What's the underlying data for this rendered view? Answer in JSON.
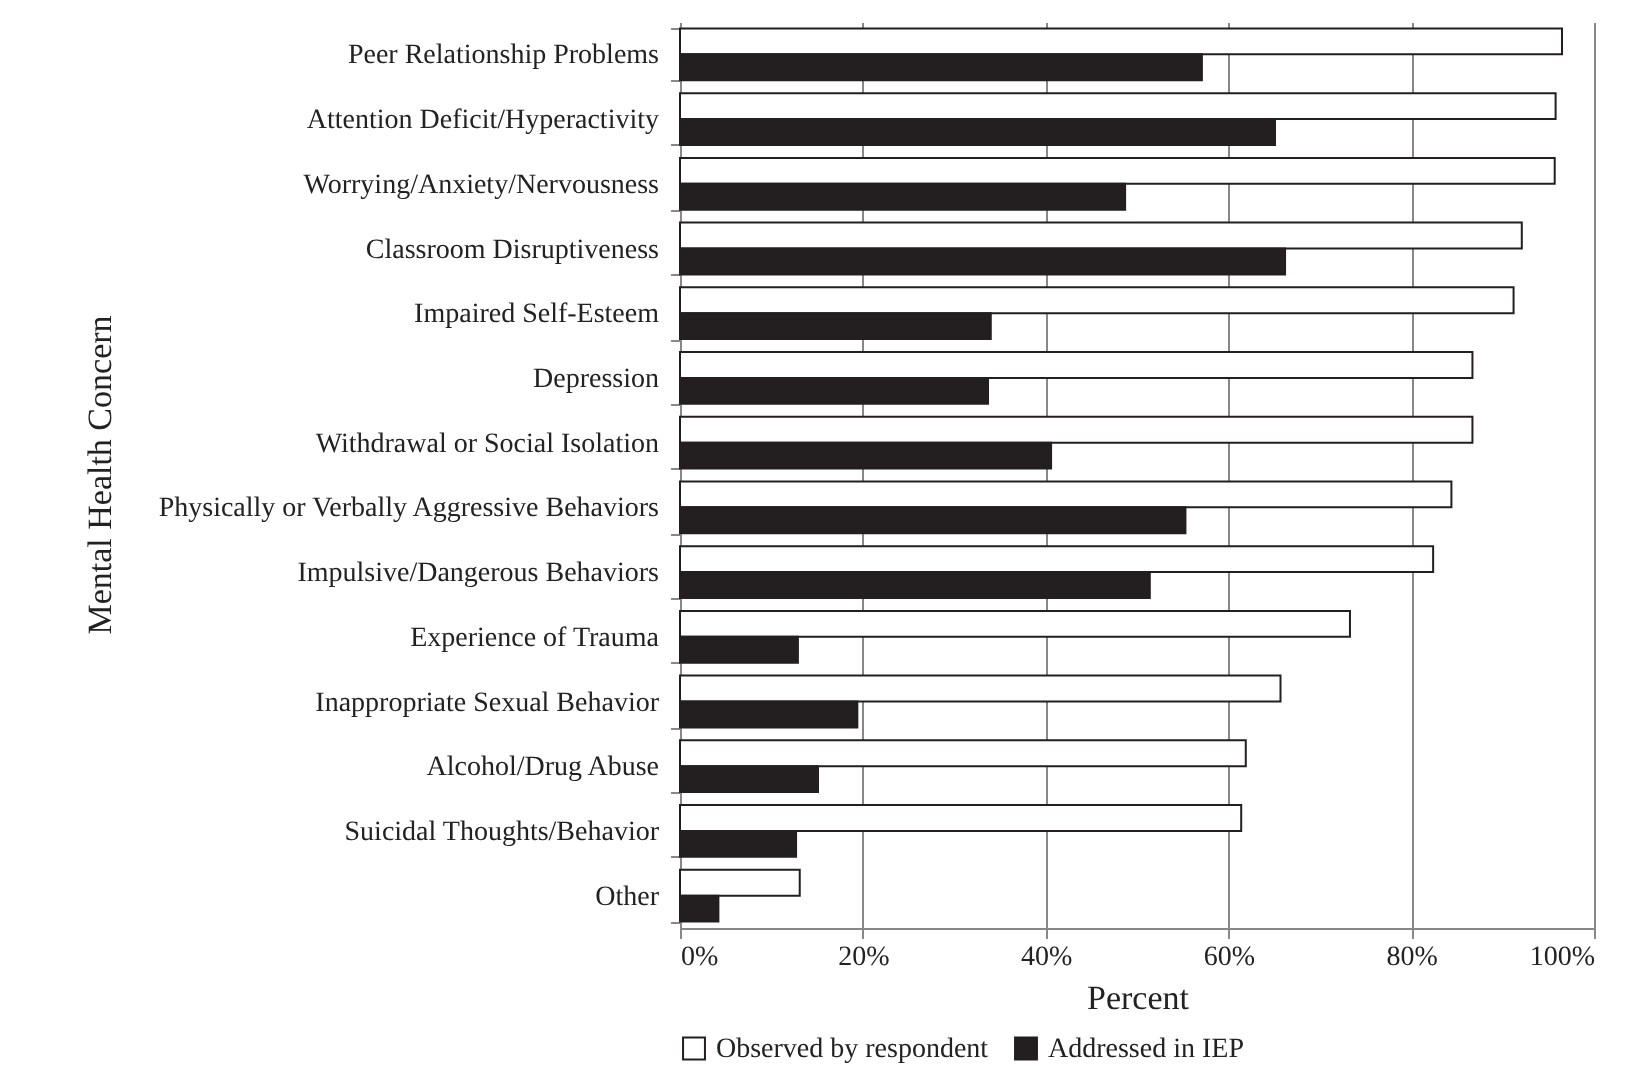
{
  "chart_data": {
    "type": "bar",
    "orientation": "horizontal",
    "xlabel": "Percent",
    "ylabel": "Mental Health Concern",
    "categories": [
      "Peer Relationship Problems",
      "Attention Deficit/Hyperactivity",
      "Worrying/Anxiety/Nervousness",
      "Classroom Disruptiveness",
      "Impaired Self-Esteem",
      "Depression",
      "Withdrawal or Social Isolation",
      "Physically or Verbally Aggressive Behaviors",
      "Impulsive/Dangerous Behaviors",
      "Experience of Trauma",
      "Inappropriate Sexual Behavior",
      "Alcohol/Drug Abuse",
      "Suicidal Thoughts/Behavior",
      "Other"
    ],
    "series": [
      {
        "name": "Observed by respondent",
        "color": "#ffffff",
        "values": [
          96.5,
          95.8,
          95.7,
          92.1,
          91.2,
          86.7,
          86.7,
          84.4,
          82.4,
          73.3,
          65.7,
          61.9,
          61.4,
          13.1
        ]
      },
      {
        "name": "Addressed in IEP",
        "color": "#231f20",
        "values": [
          57.1,
          65.1,
          48.7,
          66.2,
          34.0,
          33.7,
          40.6,
          55.3,
          51.4,
          12.9,
          19.4,
          15.1,
          12.7,
          4.2
        ]
      }
    ],
    "xlim": [
      0,
      100
    ],
    "xticks": [
      {
        "value": 0,
        "label": "0%"
      },
      {
        "value": 20,
        "label": "20%"
      },
      {
        "value": 40,
        "label": "40%"
      },
      {
        "value": 60,
        "label": "60%"
      },
      {
        "value": 80,
        "label": "80%"
      },
      {
        "value": 100,
        "label": "100%"
      }
    ],
    "grid": "x",
    "legend": "bottom"
  }
}
